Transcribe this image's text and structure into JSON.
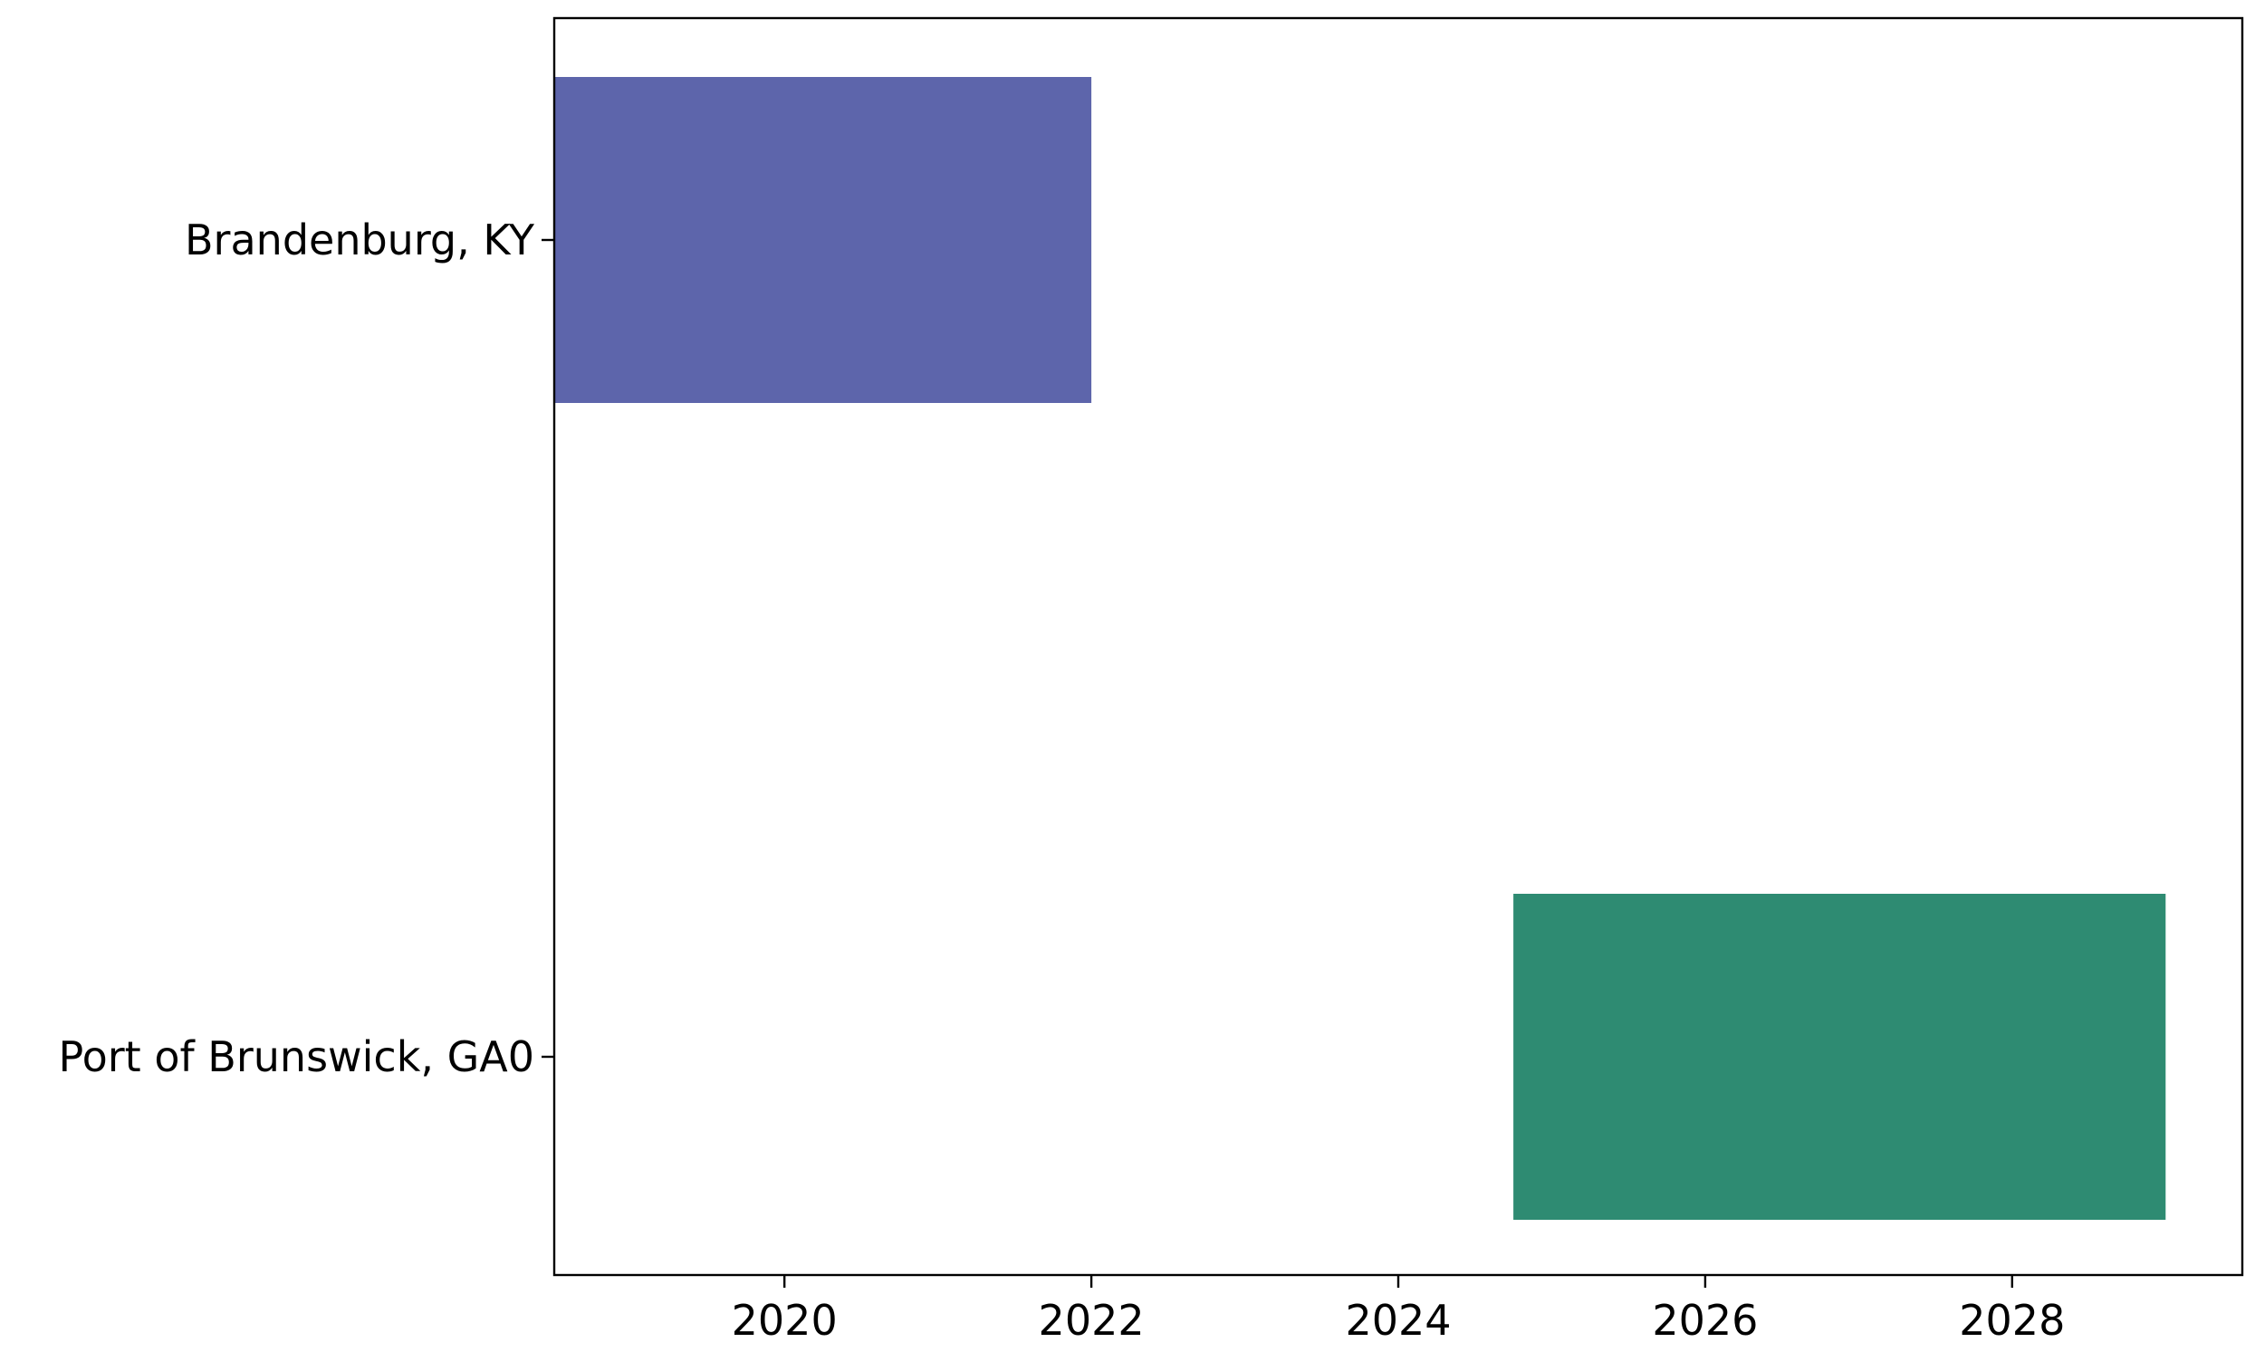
{
  "chart_data": {
    "type": "bar",
    "orientation": "horizontal",
    "subtype": "gantt",
    "title": "",
    "xlabel": "",
    "ylabel": "",
    "categories": [
      "Brandenburg, KY",
      "Port of Brunswick, GA0"
    ],
    "x_axis_unit": "year",
    "xlim": [
      2018.5,
      2029.5
    ],
    "xticks": [
      2020,
      2022,
      2024,
      2026,
      2028
    ],
    "xtick_labels": [
      "2020",
      "2022",
      "2024",
      "2026",
      "2028"
    ],
    "bars": [
      {
        "category": "Brandenburg, KY",
        "start": 2018.5,
        "end": 2022.0,
        "color": "#5d65ab"
      },
      {
        "category": "Port of Brunswick, GA0",
        "start": 2024.75,
        "end": 2029.0,
        "color": "#2e8b72"
      }
    ],
    "grid": false,
    "legend": "none"
  }
}
